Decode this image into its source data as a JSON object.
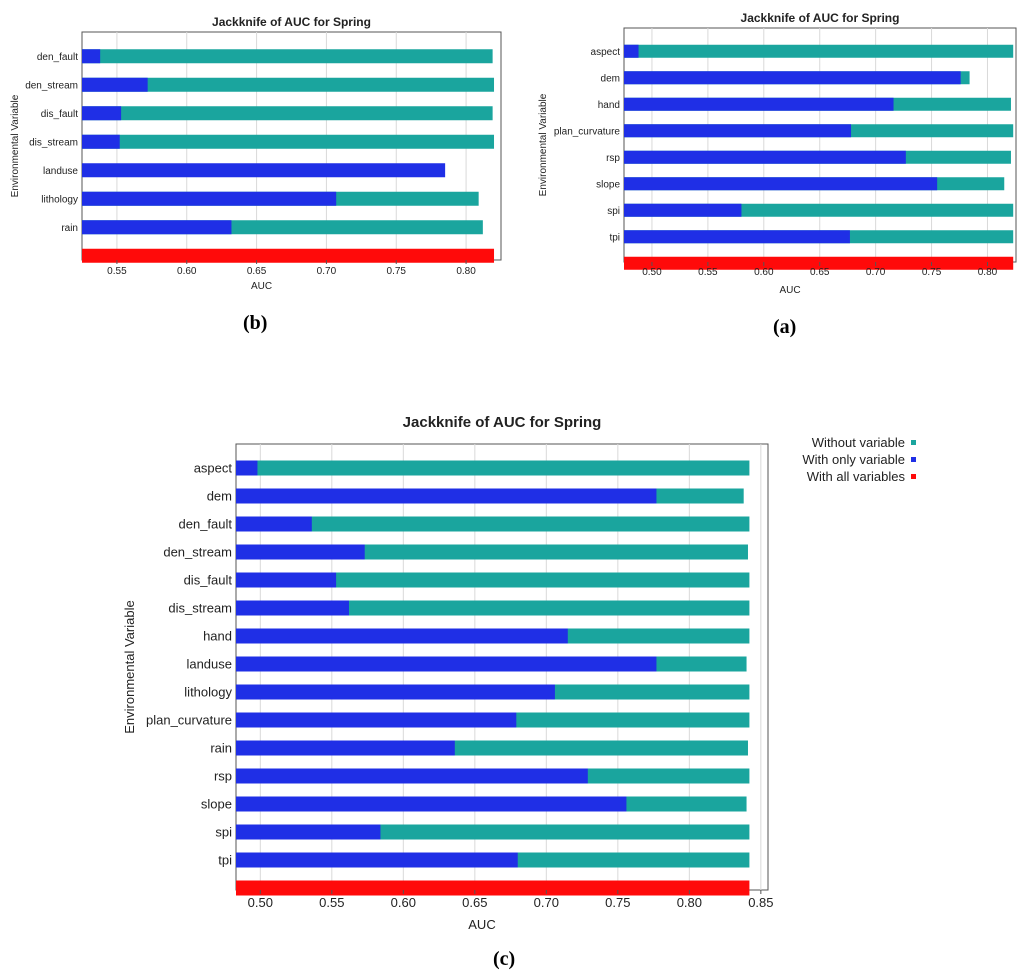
{
  "panels": {
    "b": "(b)",
    "a": "(a)",
    "c": "(c)"
  },
  "legend": [
    {
      "label": "Without variable",
      "color": "#1aa59e"
    },
    {
      "label": "With only variable",
      "color": "#1f2fe6"
    },
    {
      "label": "With all variables",
      "color": "#ff0a0a"
    }
  ],
  "colors": {
    "without": "#1aa59e",
    "only": "#1f2fe6",
    "all": "#ff0a0a"
  },
  "chart_data": [
    {
      "id": "b",
      "type": "bar",
      "title": "Jackknife of AUC for Spring",
      "xlabel": "AUC",
      "ylabel": "Environmental Variable",
      "xlim": [
        0.525,
        0.825
      ],
      "xticks": [
        0.55,
        0.6,
        0.65,
        0.7,
        0.75,
        0.8
      ],
      "tick_labels": [
        "0.55",
        "0.60",
        "0.65",
        "0.70",
        "0.75",
        "0.80"
      ],
      "categories": [
        "den_fault",
        "den_stream",
        "dis_fault",
        "dis_stream",
        "landuse",
        "lithology",
        "rain"
      ],
      "series": [
        {
          "name": "Without variable",
          "values": [
            0.819,
            0.82,
            0.819,
            0.82,
            null,
            0.809,
            0.812
          ]
        },
        {
          "name": "With only variable",
          "values": [
            0.538,
            0.572,
            0.553,
            0.552,
            0.785,
            0.707,
            0.632
          ]
        }
      ],
      "all_variables": 0.82
    },
    {
      "id": "a",
      "type": "bar",
      "title": "Jackknife of AUC for Spring",
      "xlabel": "AUC",
      "ylabel": "Environmental Variable",
      "xlim": [
        0.475,
        0.8255
      ],
      "xticks": [
        0.5,
        0.55,
        0.6,
        0.65,
        0.7,
        0.75,
        0.8
      ],
      "tick_labels": [
        "0.50",
        "0.55",
        "0.60",
        "0.65",
        "0.70",
        "0.75",
        "0.80"
      ],
      "categories": [
        "aspect",
        "dem",
        "hand",
        "plan_curvature",
        "rsp",
        "slope",
        "spi",
        "tpi"
      ],
      "series": [
        {
          "name": "Without variable",
          "values": [
            0.823,
            0.784,
            0.821,
            0.823,
            0.821,
            0.815,
            0.823,
            0.823
          ]
        },
        {
          "name": "With only variable",
          "values": [
            0.488,
            0.776,
            0.716,
            0.678,
            0.727,
            0.755,
            0.58,
            0.677
          ]
        }
      ],
      "all_variables": 0.823
    },
    {
      "id": "c",
      "type": "bar",
      "title": "Jackknife of AUC for Spring",
      "xlabel": "AUC",
      "ylabel": "Environmental Variable",
      "xlim": [
        0.483,
        0.855
      ],
      "xticks": [
        0.5,
        0.55,
        0.6,
        0.65,
        0.7,
        0.75,
        0.8,
        0.85
      ],
      "tick_labels": [
        "0.50",
        "0.55",
        "0.60",
        "0.65",
        "0.70",
        "0.75",
        "0.80",
        "0.85"
      ],
      "categories": [
        "aspect",
        "dem",
        "den_fault",
        "den_stream",
        "dis_fault",
        "dis_stream",
        "hand",
        "landuse",
        "lithology",
        "plan_curvature",
        "rain",
        "rsp",
        "slope",
        "spi",
        "tpi"
      ],
      "series": [
        {
          "name": "Without variable",
          "values": [
            0.842,
            0.838,
            0.842,
            0.841,
            0.842,
            0.842,
            0.842,
            0.84,
            0.842,
            0.842,
            0.841,
            0.842,
            0.84,
            0.842,
            0.842
          ]
        },
        {
          "name": "With only variable",
          "values": [
            0.498,
            0.777,
            0.536,
            0.573,
            0.553,
            0.562,
            0.715,
            0.777,
            0.706,
            0.679,
            0.636,
            0.729,
            0.756,
            0.584,
            0.68
          ]
        }
      ],
      "all_variables": 0.842,
      "legend_position": "top-right"
    }
  ]
}
